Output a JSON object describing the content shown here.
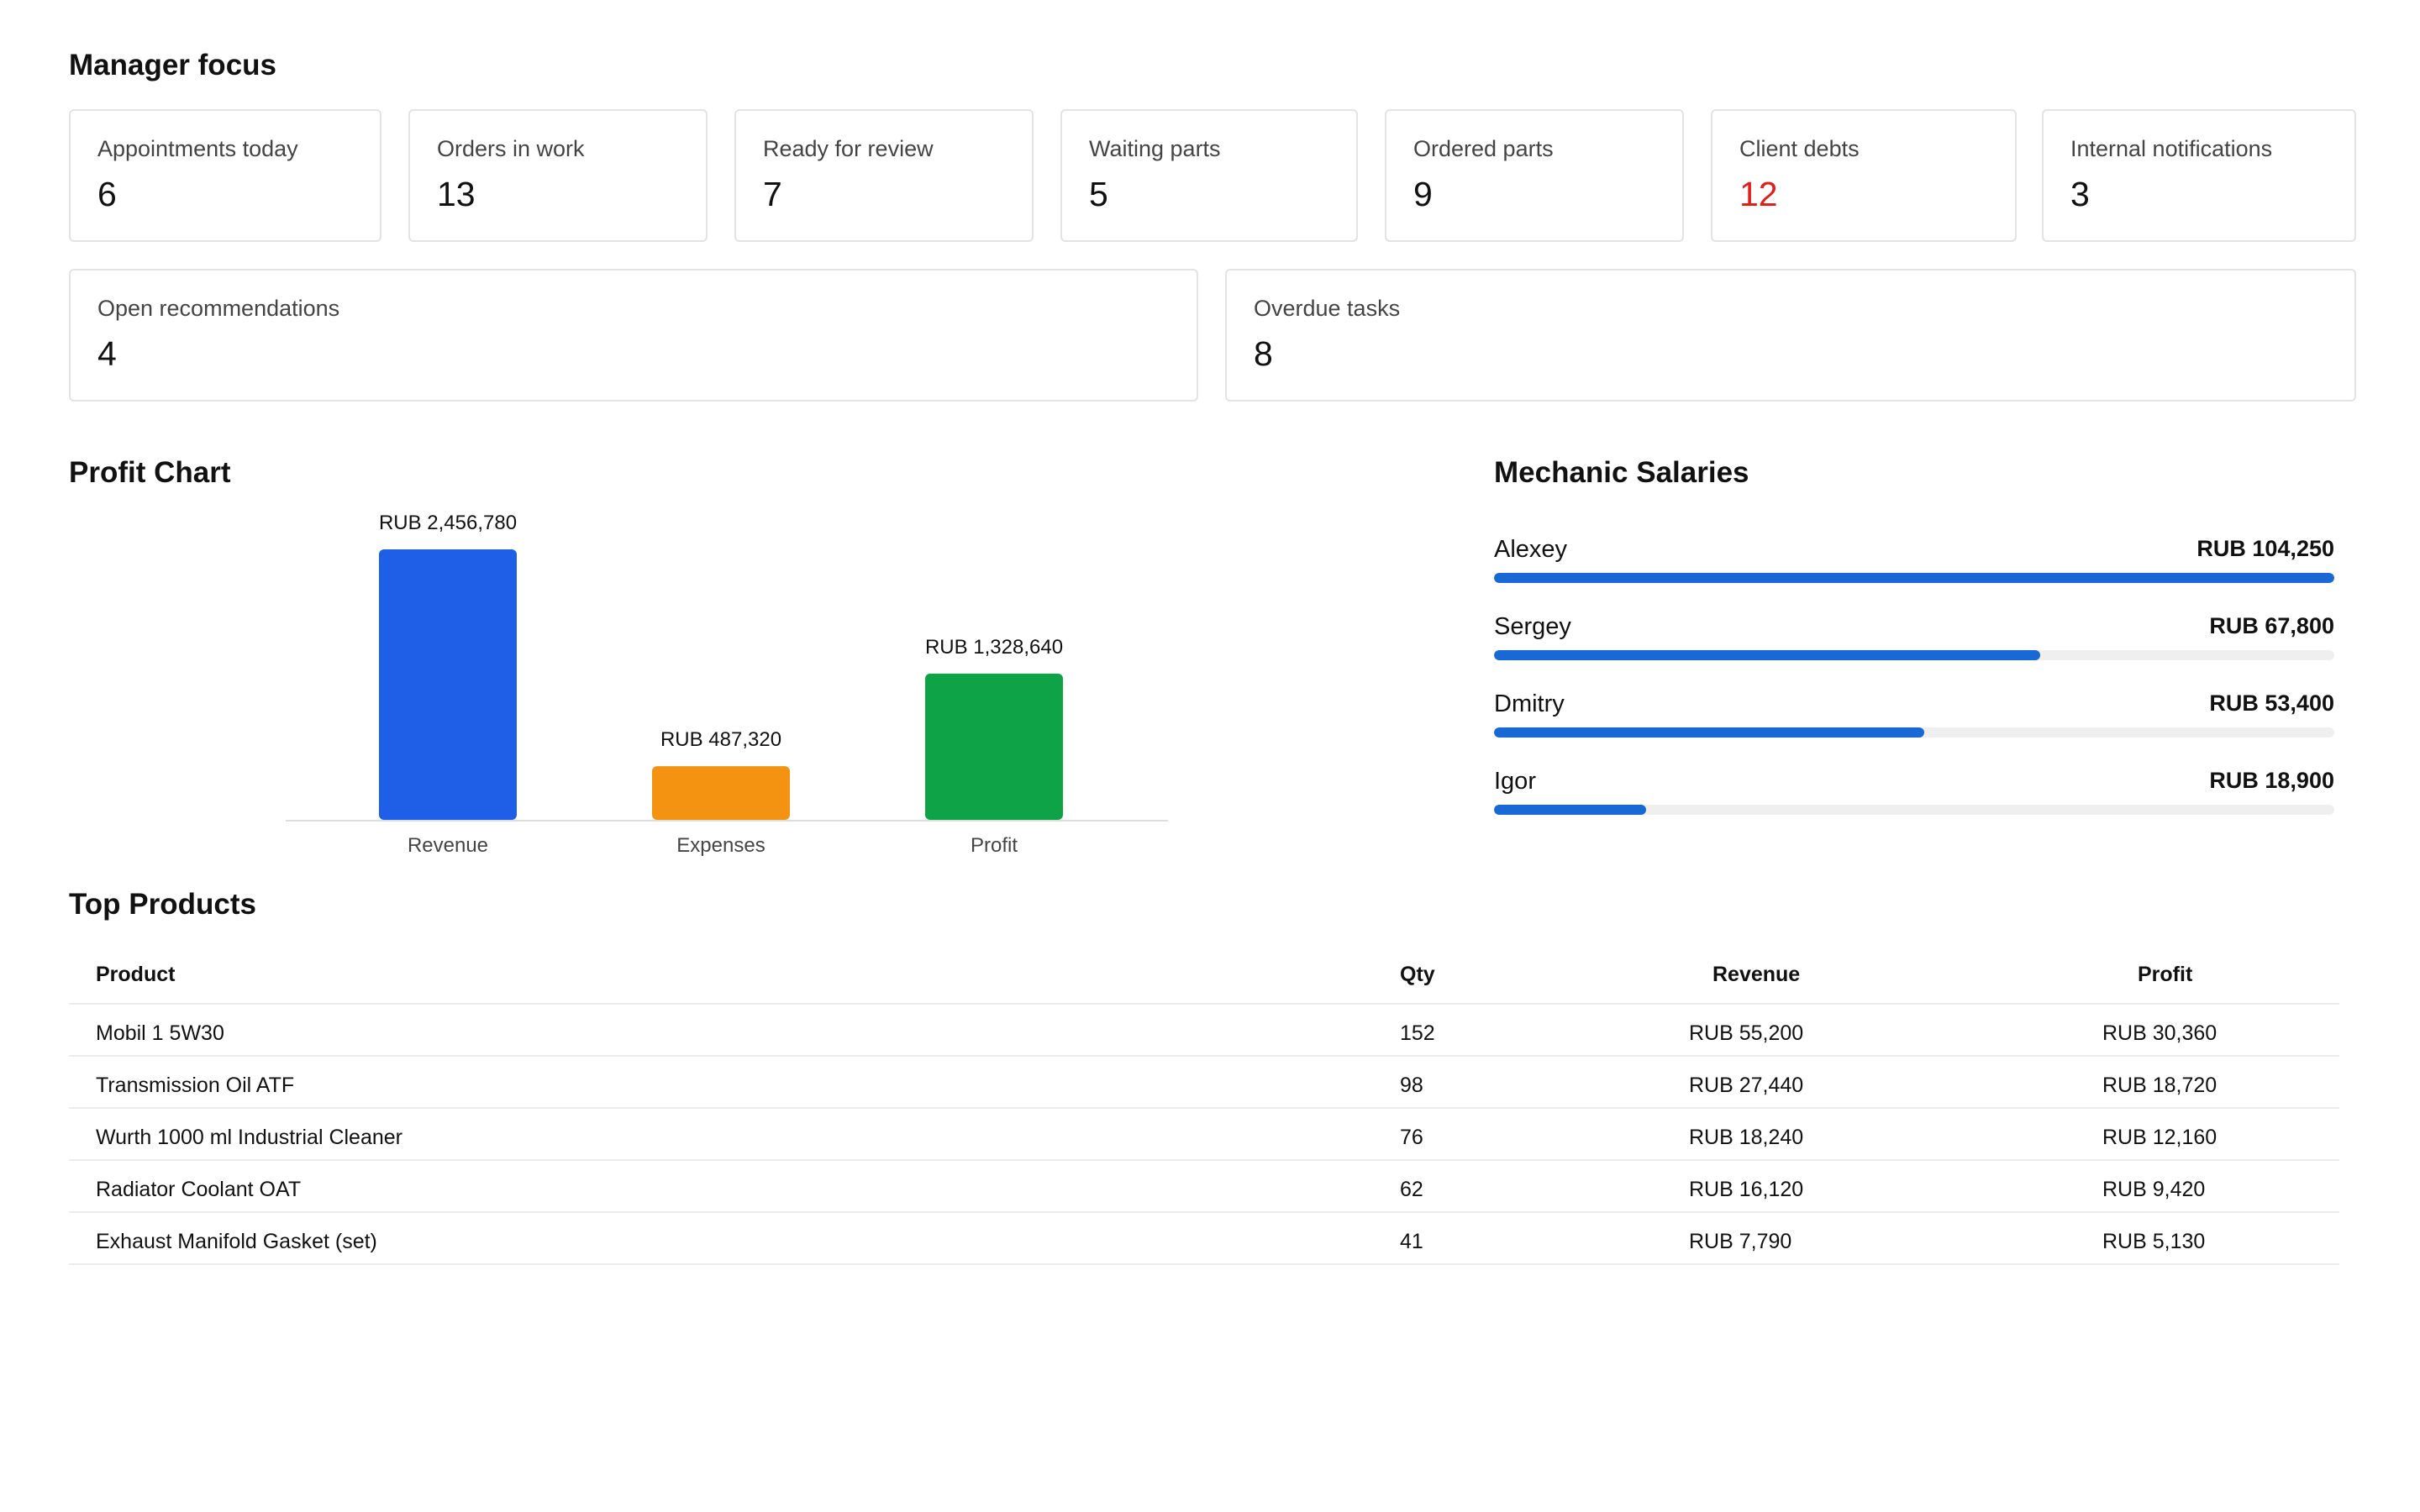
{
  "manager_focus": {
    "title": "Manager focus",
    "cards": [
      {
        "label": "Appointments today",
        "value": "6"
      },
      {
        "label": "Orders in work",
        "value": "13"
      },
      {
        "label": "Ready for review",
        "value": "7"
      },
      {
        "label": "Waiting parts",
        "value": "5"
      },
      {
        "label": "Ordered parts",
        "value": "9"
      },
      {
        "label": "Client debts",
        "value": "12"
      },
      {
        "label": "Internal notifications",
        "value": "3"
      },
      {
        "label": "Open recommendations",
        "value": "4"
      },
      {
        "label": "Overdue tasks",
        "value": "8"
      }
    ],
    "alert_color": "#e0201c"
  },
  "profit_chart": {
    "title": "Profit Chart"
  },
  "chart_data": {
    "type": "bar",
    "title": "Profit Chart",
    "categories": [
      "Revenue",
      "Expenses",
      "Profit"
    ],
    "values": [
      2456780,
      487320,
      1328640
    ],
    "data_labels": [
      "RUB 2,456,780",
      "RUB 487,320",
      "RUB 1,328,640"
    ],
    "colors": [
      "#1f5fe8",
      "#f39311",
      "#0fa347"
    ],
    "xlabel": "",
    "ylabel": "",
    "ylim": [
      0,
      2456780
    ],
    "grid": false,
    "legend": "none"
  },
  "mechanic_salaries": {
    "title": "Mechanic Salaries",
    "max_value": 104250,
    "bar_color": "#1868d6",
    "items": [
      {
        "name": "Alexey",
        "amount_label": "RUB 104,250",
        "amount": 104250
      },
      {
        "name": "Sergey",
        "amount_label": "RUB 67,800",
        "amount": 67800
      },
      {
        "name": "Dmitry",
        "amount_label": "RUB 53,400",
        "amount": 53400
      },
      {
        "name": "Igor",
        "amount_label": "RUB 18,900",
        "amount": 18900
      }
    ]
  },
  "top_products": {
    "title": "Top Products",
    "headers": {
      "product": "Product",
      "qty": "Qty",
      "revenue": "Revenue",
      "profit": "Profit"
    },
    "rows": [
      {
        "product": "Mobil 1 5W30",
        "qty": "152",
        "revenue": "RUB 55,200",
        "profit": "RUB 30,360"
      },
      {
        "product": "Transmission Oil ATF",
        "qty": "98",
        "revenue": "RUB 27,440",
        "profit": "RUB 18,720"
      },
      {
        "product": "Wurth 1000 ml Industrial Cleaner",
        "qty": "76",
        "revenue": "RUB 18,240",
        "profit": "RUB 12,160"
      },
      {
        "product": "Radiator Coolant OAT",
        "qty": "62",
        "revenue": "RUB 16,120",
        "profit": "RUB 9,420"
      },
      {
        "product": "Exhaust Manifold Gasket (set)",
        "qty": "41",
        "revenue": "RUB 7,790",
        "profit": "RUB 5,130"
      }
    ]
  }
}
